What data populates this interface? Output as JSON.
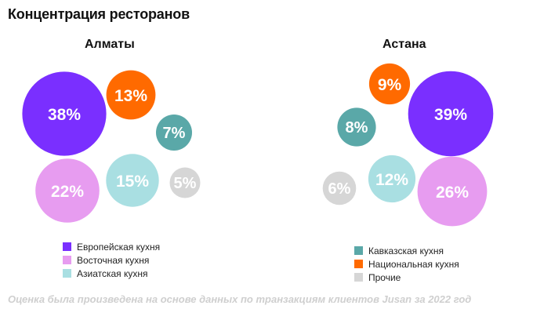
{
  "title": "Концентрация ресторанов",
  "footnote": "Оценка была произведена на основе данных по транзакциям клиентов Jusan за 2022 год",
  "colors": {
    "european": "#7a2fff",
    "national": "#ff6a00",
    "caucasian": "#5aa8a8",
    "oriental": "#e79cf0",
    "asian": "#a9dfe2",
    "other": "#d6d6d6"
  },
  "chart_data": [
    {
      "type": "bubble",
      "title": "Алматы",
      "series": [
        {
          "name": "Европейская кухня",
          "value": 38,
          "label": "38%",
          "color_key": "european"
        },
        {
          "name": "Восточная кухня",
          "value": 22,
          "label": "22%",
          "color_key": "oriental"
        },
        {
          "name": "Азиатская кухня",
          "value": 15,
          "label": "15%",
          "color_key": "asian"
        },
        {
          "name": "Национальная кухня",
          "value": 13,
          "label": "13%",
          "color_key": "national"
        },
        {
          "name": "Кавказская кухня",
          "value": 7,
          "label": "7%",
          "color_key": "caucasian"
        },
        {
          "name": "Прочие",
          "value": 5,
          "label": "5%",
          "color_key": "other"
        }
      ],
      "legend": [
        "Европейская кухня",
        "Восточная кухня",
        "Азиатская кухня"
      ]
    },
    {
      "type": "bubble",
      "title": "Астана",
      "series": [
        {
          "name": "Европейская кухня",
          "value": 39,
          "label": "39%",
          "color_key": "european"
        },
        {
          "name": "Восточная кухня",
          "value": 26,
          "label": "26%",
          "color_key": "oriental"
        },
        {
          "name": "Азиатская кухня",
          "value": 12,
          "label": "12%",
          "color_key": "asian"
        },
        {
          "name": "Национальная кухня",
          "value": 9,
          "label": "9%",
          "color_key": "national"
        },
        {
          "name": "Кавказская кухня",
          "value": 8,
          "label": "8%",
          "color_key": "caucasian"
        },
        {
          "name": "Прочие",
          "value": 6,
          "label": "6%",
          "color_key": "other"
        }
      ],
      "legend": [
        "Кавказская кухня",
        "Национальная кухня",
        "Прочие"
      ]
    }
  ]
}
